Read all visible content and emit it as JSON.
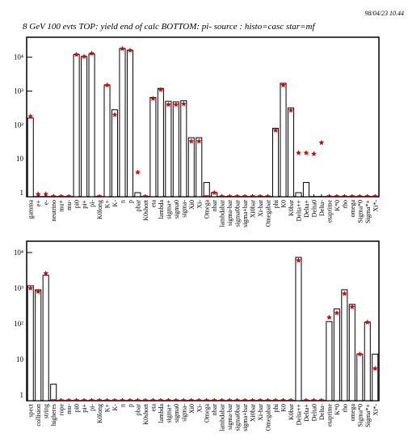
{
  "header": {
    "timestamp": "98/04/23  10.44",
    "title": "8 GeV 100 evts TOP: yield end of calc BOTTOM: pi- source : histo=casc star=mf"
  },
  "chart_data": [
    {
      "type": "bar",
      "log_scale": true,
      "categories": [
        "gamma",
        "e+",
        "e-",
        "neutrino",
        "mu+",
        "mu-",
        "pi0",
        "pi+",
        "pi-",
        "K0long",
        "K+",
        "K-",
        "n",
        "p",
        "pbar",
        "K0short",
        "eta",
        "lambda",
        "sigma+",
        "sigma0",
        "sigma-",
        "Xi0",
        "Xi-",
        "Omega",
        "nbar",
        "lambdabar",
        "sigma-bar",
        "sigma0bar",
        "sigma+bar",
        "Xi0bar",
        "Xi-bar",
        "Omegabar",
        "phi",
        "K0",
        "K0bar",
        "Delta++",
        "Delta+",
        "Delta0",
        "Delta-",
        "etaprime",
        "K*0",
        "rho",
        "omega",
        "Sigma*0",
        "Sigma*+",
        "Xi*-"
      ],
      "series": [
        {
          "marker": "bar",
          "color": "#000000",
          "values": [
            160,
            0,
            0,
            0,
            0,
            0,
            12000,
            10500,
            12500,
            0,
            1500,
            280,
            18000,
            16000,
            1,
            0,
            650,
            1200,
            500,
            480,
            520,
            42,
            42,
            2,
            1,
            0,
            0,
            0,
            0,
            0,
            0,
            0,
            80,
            1700,
            320,
            1,
            2,
            0,
            0,
            0,
            0,
            0,
            0,
            0,
            0,
            0
          ]
        },
        {
          "marker": "star",
          "color": "#e00000",
          "values": [
            180,
            0.9,
            0.9,
            0,
            0,
            0,
            12000,
            10500,
            13000,
            0,
            1500,
            200,
            18000,
            16000,
            4,
            0,
            600,
            1100,
            400,
            400,
            420,
            33,
            33,
            0,
            1,
            0,
            0,
            0,
            0,
            0,
            0,
            0,
            70,
            1500,
            270,
            15,
            15,
            14,
            30,
            0,
            0,
            0,
            0,
            0,
            0,
            0
          ]
        }
      ],
      "ylim": [
        0.76,
        39000
      ],
      "yticks": [
        1,
        10,
        {
          "value": 100,
          "label": "10²"
        },
        {
          "value": 1000,
          "label": "10³"
        },
        {
          "value": 10000,
          "label": "10⁴"
        }
      ]
    },
    {
      "type": "bar",
      "log_scale": true,
      "categories": [
        "spect",
        "collision",
        "string",
        "higheres",
        "rope",
        "mu-",
        "pi0",
        "pi+",
        "pi-",
        "K0long",
        "K+",
        "K-",
        "n",
        "p",
        "pbar",
        "K0short",
        "eta",
        "lambda",
        "sigma+",
        "sigma0",
        "sigma-",
        "Xi0",
        "Xi-",
        "Omega",
        "nbar",
        "lambdabar",
        "sigma-bar",
        "sigma0bar",
        "sigma+bar",
        "Xi0bar",
        "Xi-bar",
        "Omegabar",
        "phi",
        "K0",
        "K0bar",
        "Delta++",
        "Delta+",
        "Delta0",
        "Delta-",
        "etaprime",
        "K*0",
        "rho",
        "omega",
        "Sigma*0",
        "Sigma*+",
        "Xi*-"
      ],
      "series": [
        {
          "marker": "bar",
          "color": "#000000",
          "values": [
            1170,
            900,
            2300,
            2,
            0,
            0,
            0,
            0,
            0,
            0,
            0,
            0,
            0,
            0,
            0,
            0,
            0,
            0,
            0,
            0,
            0,
            0,
            0,
            0,
            0,
            0,
            0,
            0,
            0,
            0,
            0,
            0,
            0,
            0,
            0,
            7300,
            0,
            0,
            0,
            115,
            260,
            900,
            350,
            14,
            110,
            14
          ]
        },
        {
          "marker": "star",
          "color": "#e00000",
          "values": [
            1000,
            800,
            2600,
            0,
            0,
            0,
            0,
            0,
            0,
            0,
            0,
            0,
            0,
            0,
            0,
            0,
            0,
            0,
            0,
            0,
            0,
            0,
            0,
            0,
            0,
            0,
            0,
            0,
            0,
            0,
            0,
            0,
            0,
            0,
            0,
            6000,
            0,
            0,
            0,
            150,
            200,
            700,
            300,
            14,
            110,
            5.5
          ]
        }
      ],
      "ylim": [
        0.69,
        20800
      ],
      "yticks": [
        1,
        10,
        {
          "value": 100,
          "label": "10²"
        },
        {
          "value": 1000,
          "label": "10³"
        },
        {
          "value": 10000,
          "label": "10⁴"
        }
      ]
    }
  ]
}
